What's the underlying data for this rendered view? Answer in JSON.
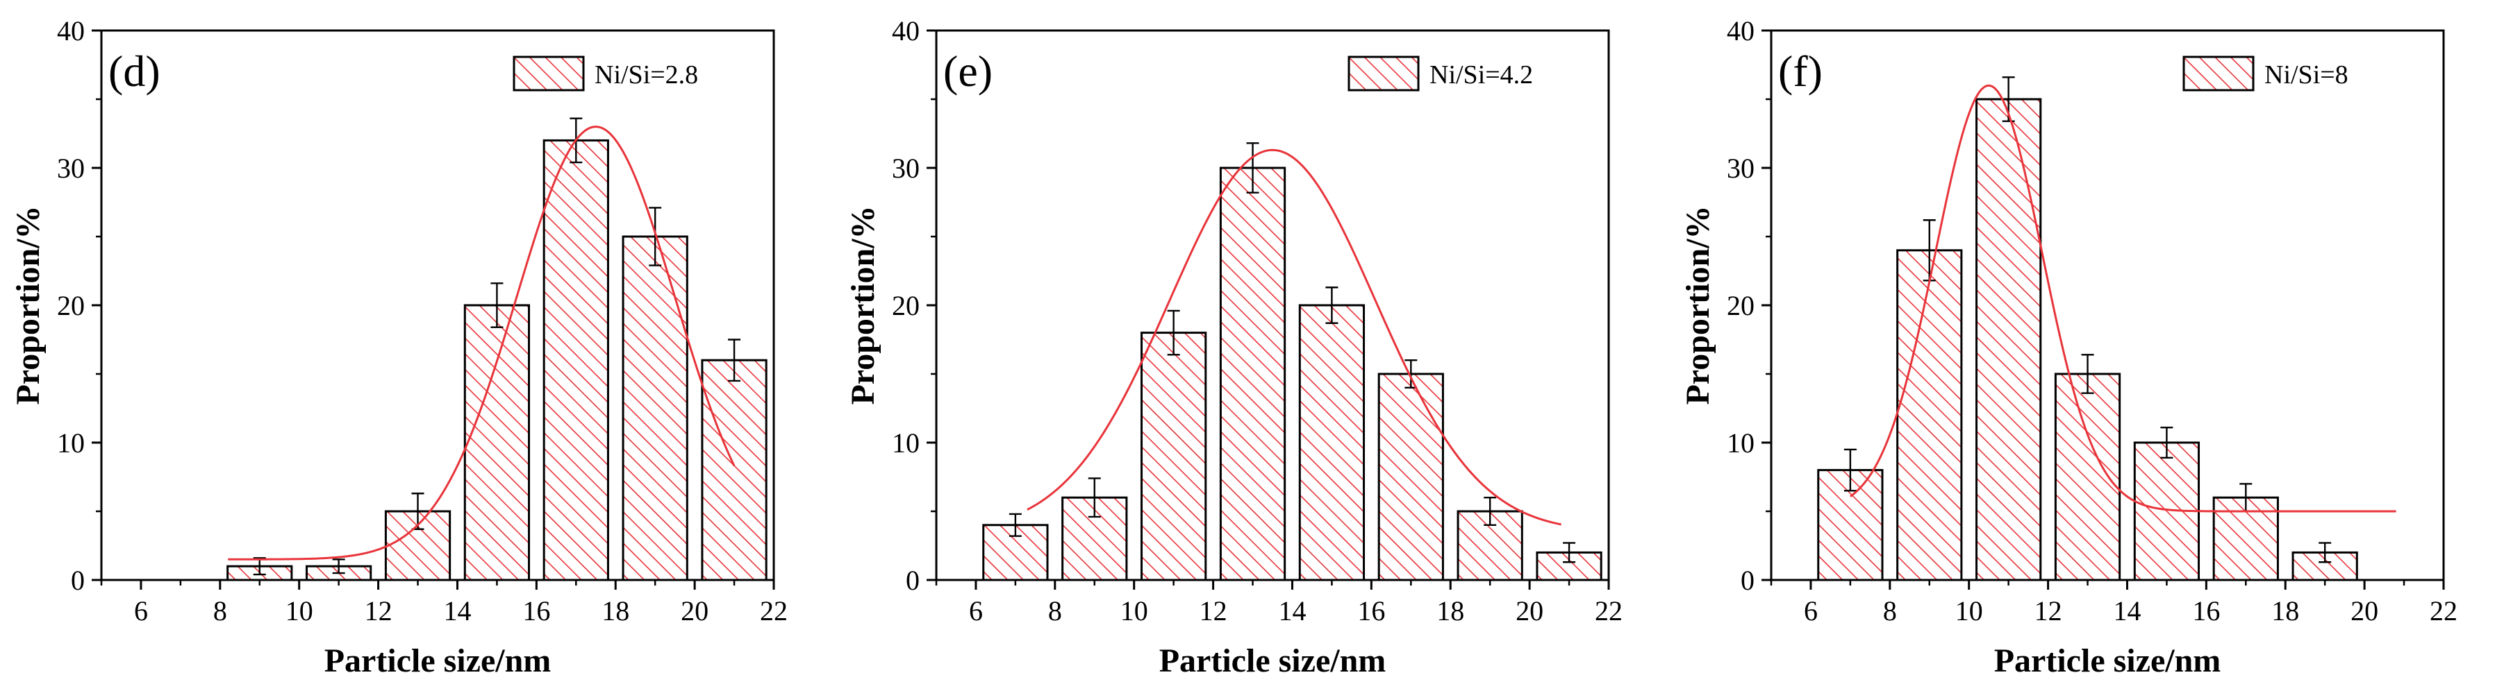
{
  "chart_data": [
    {
      "type": "bar",
      "panel_label": "(d)",
      "legend": "Ni/Si=2.8",
      "xlabel": "Particle size/nm",
      "ylabel": "Proportion/%",
      "xlim": [
        5,
        22
      ],
      "ylim": [
        0,
        40
      ],
      "xticks": [
        6,
        8,
        10,
        12,
        14,
        16,
        18,
        20,
        22
      ],
      "yticks": [
        0,
        10,
        20,
        30,
        40
      ],
      "x": [
        9,
        11,
        13,
        15,
        17,
        19,
        21
      ],
      "values": [
        1,
        1,
        5,
        20,
        32,
        25,
        16
      ],
      "errors": [
        0.6,
        0.5,
        1.3,
        1.6,
        1.6,
        2.1,
        1.5
      ],
      "fit_curve": {
        "type": "gaussian",
        "base": 1.5,
        "amplitude": 31.5,
        "center": 17.5,
        "sigma": 2.0,
        "range": [
          8.2,
          21
        ]
      },
      "colors": {
        "bar_stroke": "#000000",
        "hatch": "#e8343a",
        "fit": "#e8343a"
      }
    },
    {
      "type": "bar",
      "panel_label": "(e)",
      "legend": "Ni/Si=4.2",
      "xlabel": "Particle size/nm",
      "ylabel": "Proportion/%",
      "xlim": [
        5,
        22
      ],
      "ylim": [
        0,
        40
      ],
      "xticks": [
        6,
        8,
        10,
        12,
        14,
        16,
        18,
        20,
        22
      ],
      "yticks": [
        0,
        10,
        20,
        30,
        40
      ],
      "x": [
        7,
        9,
        11,
        13,
        15,
        17,
        19,
        21
      ],
      "values": [
        4,
        6,
        18,
        30,
        20,
        15,
        5,
        2
      ],
      "errors": [
        0.8,
        1.4,
        1.6,
        1.8,
        1.3,
        1.0,
        1.0,
        0.7
      ],
      "fit_curve": {
        "type": "gaussian",
        "base": 3.5,
        "amplitude": 27.8,
        "center": 13.5,
        "sigma": 2.6,
        "range": [
          7.3,
          20.8
        ]
      },
      "colors": {
        "bar_stroke": "#000000",
        "hatch": "#e8343a",
        "fit": "#e8343a"
      }
    },
    {
      "type": "bar",
      "panel_label": "(f)",
      "legend": "Ni/Si=8",
      "xlabel": "Particle size/nm",
      "ylabel": "Proportion/%",
      "xlim": [
        5,
        22
      ],
      "ylim": [
        0,
        40
      ],
      "xticks": [
        6,
        8,
        10,
        12,
        14,
        16,
        18,
        20,
        22
      ],
      "yticks": [
        0,
        10,
        20,
        30,
        40
      ],
      "x": [
        7,
        9,
        11,
        13,
        15,
        17,
        19
      ],
      "values": [
        8,
        24,
        35,
        15,
        10,
        6,
        2
      ],
      "errors": [
        1.5,
        2.2,
        1.6,
        1.4,
        1.1,
        1.0,
        0.7
      ],
      "fit_curve": {
        "type": "gaussian",
        "base": 5,
        "amplitude": 31,
        "center": 10.5,
        "sigma": 1.35,
        "range": [
          7,
          20.8
        ]
      },
      "colors": {
        "bar_stroke": "#000000",
        "hatch": "#e8343a",
        "fit": "#e8343a"
      }
    }
  ]
}
